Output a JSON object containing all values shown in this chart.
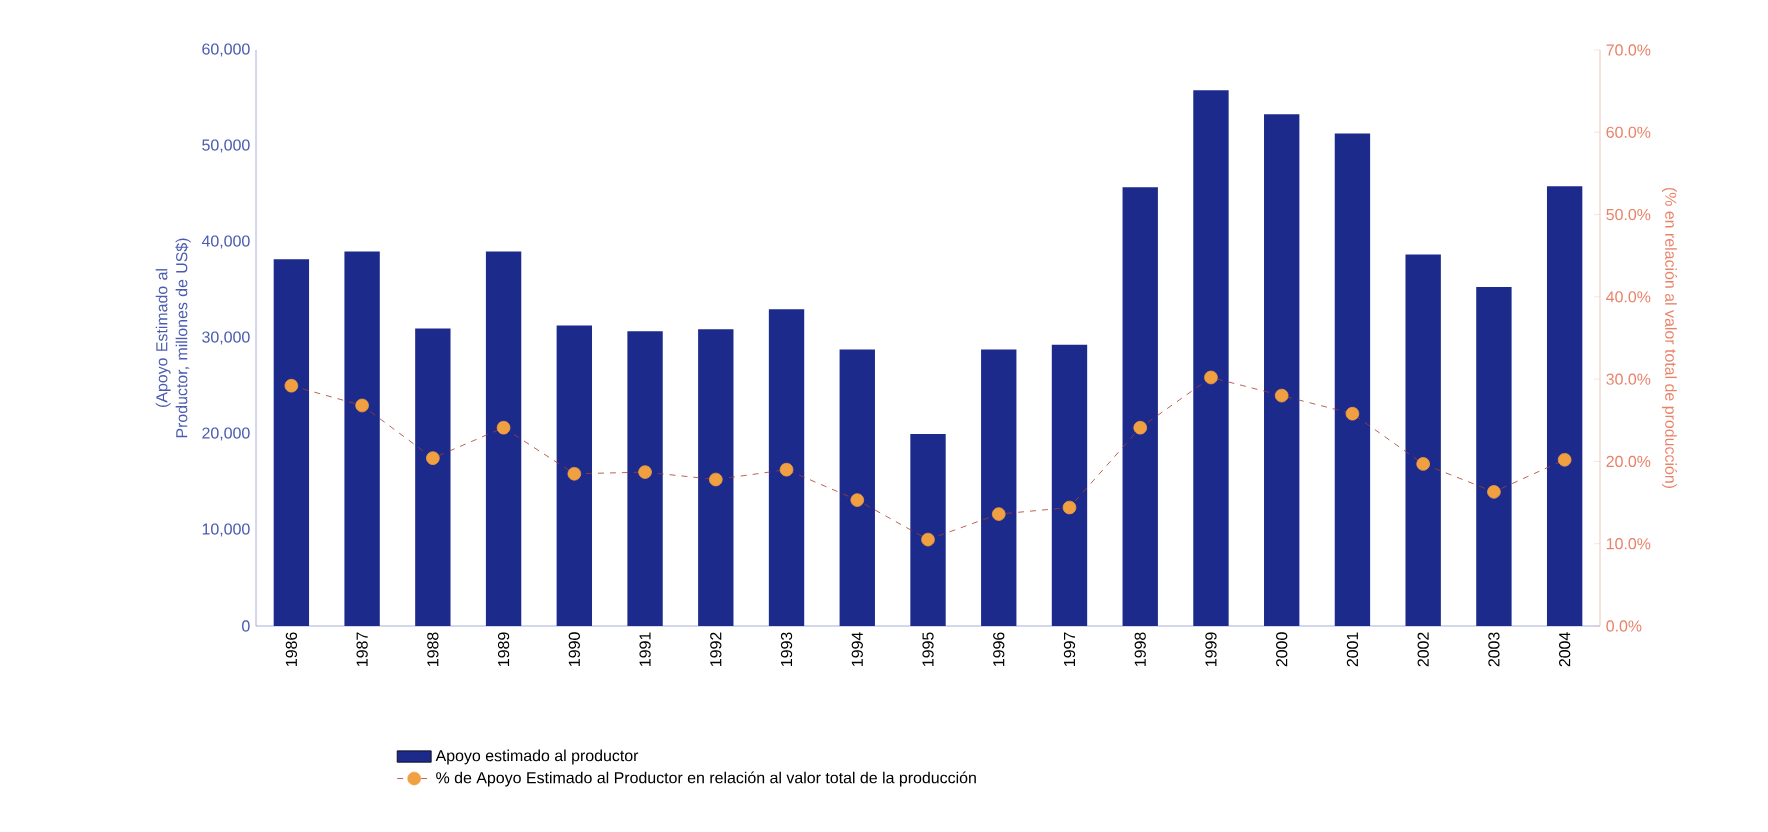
{
  "chart_data": {
    "type": "bar",
    "categories": [
      "1986",
      "1987",
      "1988",
      "1989",
      "1990",
      "1991",
      "1992",
      "1993",
      "1994",
      "1995",
      "1996",
      "1997",
      "1998",
      "1999",
      "2000",
      "2001",
      "2002",
      "2003",
      "2004"
    ],
    "series": [
      {
        "name": "Apoyo estimado al productor",
        "color": "#1c2a8c",
        "values": [
          38200,
          39000,
          31000,
          39000,
          31300,
          30700,
          30900,
          33000,
          28800,
          20000,
          28800,
          29300,
          45700,
          55800,
          53300,
          51300,
          38700,
          35300,
          45800
        ]
      },
      {
        "name": "% de Apoyo Estimado al Productor en relación al valor total de la producción",
        "type": "line",
        "axis": "y2",
        "color": "#f0a040",
        "marker": "circle",
        "line_style": "dashed",
        "values": [
          29.2,
          26.8,
          20.4,
          24.1,
          18.5,
          18.7,
          17.8,
          19.0,
          15.3,
          10.5,
          13.6,
          14.4,
          24.1,
          30.2,
          28.0,
          25.8,
          19.7,
          16.3,
          20.2
        ]
      }
    ],
    "ylabel": "(Apoyo Estimado al Productor, millones de US$)",
    "y2label": "(% en relación al valor total de producción)",
    "ylim": [
      0,
      60000
    ],
    "yticks": [
      {
        "value": 0,
        "label": "0"
      },
      {
        "value": 10000,
        "label": "10,000"
      },
      {
        "value": 20000,
        "label": "20,000"
      },
      {
        "value": 30000,
        "label": "30,000"
      },
      {
        "value": 40000,
        "label": "40,000"
      },
      {
        "value": 50000,
        "label": "50,000"
      },
      {
        "value": 60000,
        "label": "60,000"
      }
    ],
    "y2lim": [
      0,
      70
    ],
    "y2ticks": [
      {
        "value": 0,
        "label": "0.0%"
      },
      {
        "value": 10,
        "label": "10.0%"
      },
      {
        "value": 20,
        "label": "20.0%"
      },
      {
        "value": 30,
        "label": "30.0%"
      },
      {
        "value": 40,
        "label": "40.0%"
      },
      {
        "value": 50,
        "label": "50.0%"
      },
      {
        "value": 60,
        "label": "60.0%"
      },
      {
        "value": 70,
        "label": "70.0%"
      }
    ],
    "grid": false,
    "legend": "bottom"
  }
}
